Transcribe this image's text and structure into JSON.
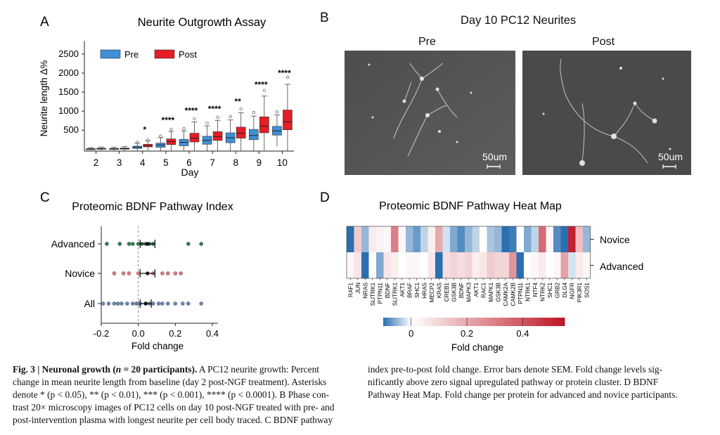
{
  "panels": {
    "A": {
      "letter": "A",
      "title": "Neurite Outgrowth  Assay",
      "legend": [
        {
          "label": "Pre",
          "color": "#3f8fd6"
        },
        {
          "label": "Post",
          "color": "#e51e25"
        }
      ],
      "ylabel": "Neurite length Δ%",
      "xlabel": "Day",
      "yticks": [
        "500",
        "1000",
        "1500",
        "2000",
        "2500"
      ],
      "days": [
        "2",
        "3",
        "4",
        "5",
        "6",
        "7",
        "8",
        "9",
        "10"
      ],
      "significance": [
        "",
        "",
        "*",
        "****",
        "****",
        "****",
        "**",
        "****",
        "****"
      ]
    },
    "B": {
      "letter": "B",
      "title": "Day 10 PC12 Neurites",
      "images": [
        {
          "label": "Pre",
          "scalebar": "50um"
        },
        {
          "label": "Post",
          "scalebar": "50um"
        }
      ]
    },
    "C": {
      "letter": "C",
      "title": "Proteomic BDNF Pathway Index",
      "groups": [
        "Advanced",
        "Novice",
        "All"
      ],
      "xlabel": "Fold change",
      "xticks": [
        "-0.2",
        "0.0",
        "0.2",
        "0.4"
      ]
    },
    "D": {
      "letter": "D",
      "title": "Proteomic BDNF Pathway Heat Map",
      "row_labels": [
        "Novice",
        "Advanced"
      ],
      "proteins": [
        "RAF1",
        "JUN",
        "NRAS",
        "SLITRK1",
        "PTPN11",
        "BDNF",
        "SLITRK1",
        "AKT1",
        "BRAF",
        "SHC1",
        "HRAS",
        "MECP2",
        "KRAS",
        "CREB1",
        "GSK3B",
        "BDNF",
        "MAPK3",
        "AKT1",
        "RAC1",
        "MAPK1",
        "GSK3B",
        "CAMK2A",
        "CAMK2B",
        "PTPN11",
        "NTRK1",
        "NTF4",
        "NTRK2",
        "SHC1",
        "GRB2",
        "DLG4",
        "NGFR",
        "PIK3R1",
        "SOS1"
      ],
      "colorbar_ticks": [
        "0",
        "0.2",
        "0.4"
      ],
      "colorbar_label": "Fold change"
    }
  },
  "chart_data": [
    {
      "type": "box",
      "title": "Neurite Outgrowth  Assay",
      "xlabel": "Day",
      "ylabel": "Neurite length Δ%",
      "categories": [
        "2",
        "3",
        "4",
        "5",
        "6",
        "7",
        "8",
        "9",
        "10"
      ],
      "ylim": [
        -50,
        2850
      ],
      "series": [
        {
          "name": "Pre",
          "color": "#3f8fd6",
          "median": [
            5,
            10,
            50,
            110,
            180,
            230,
            300,
            360,
            480
          ],
          "q1": [
            -5,
            -5,
            20,
            50,
            90,
            130,
            170,
            250,
            370
          ],
          "q3": [
            15,
            20,
            80,
            160,
            260,
            340,
            430,
            520,
            600
          ]
        },
        {
          "name": "Post",
          "color": "#e51e25",
          "median": [
            10,
            15,
            90,
            200,
            290,
            330,
            420,
            600,
            720
          ],
          "q1": [
            0,
            0,
            60,
            120,
            190,
            230,
            290,
            430,
            510
          ],
          "q3": [
            25,
            30,
            130,
            270,
            420,
            460,
            580,
            850,
            1030
          ]
        }
      ],
      "annotations": [
        "",
        "",
        "*",
        "****",
        "****",
        "****",
        "**",
        "****",
        "****"
      ]
    },
    {
      "type": "scatter",
      "title": "Proteomic BDNF Pathway Index",
      "xlabel": "Fold change",
      "xlim": [
        -0.2,
        0.4
      ],
      "groups": [
        {
          "name": "Advanced",
          "color": "#2e7d4f",
          "mean": 0.05,
          "sem": 0.04,
          "values": [
            -0.17,
            -0.1,
            -0.05,
            -0.03,
            0.0,
            0.02,
            0.04,
            0.06,
            0.08,
            0.27,
            0.34
          ]
        },
        {
          "name": "Novice",
          "color": "#d9777f",
          "mean": 0.05,
          "sem": 0.04,
          "values": [
            -0.13,
            -0.08,
            -0.05,
            0.0,
            0.08,
            0.13,
            0.16,
            0.2,
            0.23
          ]
        },
        {
          "name": "All",
          "color": "#6a86b0",
          "mean": 0.04,
          "sem": 0.03,
          "values": [
            -0.19,
            -0.16,
            -0.13,
            -0.11,
            -0.09,
            -0.06,
            -0.03,
            -0.01,
            0.0,
            0.01,
            0.04,
            0.06,
            0.08,
            0.11,
            0.13,
            0.16,
            0.2,
            0.24,
            0.27,
            0.34
          ]
        }
      ]
    },
    {
      "type": "heatmap",
      "title": "Proteomic BDNF Pathway Heat Map",
      "rows": [
        "Novice",
        "Advanced"
      ],
      "columns": [
        "RAF1",
        "JUN",
        "NRAS",
        "SLITRK1",
        "PTPN11",
        "BDNF",
        "SLITRK1",
        "AKT1",
        "BRAF",
        "SHC1",
        "HRAS",
        "MECP2",
        "KRAS",
        "CREB1",
        "GSK3B",
        "BDNF",
        "MAPK3",
        "AKT1",
        "RAC1",
        "MAPK1",
        "GSK3B",
        "CAMK2A",
        "CAMK2B",
        "PTPN11",
        "NTRK1",
        "NTF4",
        "NTRK2",
        "SHC1",
        "GRB2",
        "DLG4",
        "NGFR",
        "PIK3R1",
        "SOS1"
      ],
      "values": [
        [
          -0.12,
          0.12,
          -0.05,
          0.05,
          0.03,
          0.02,
          0.3,
          0.02,
          -0.05,
          -0.07,
          -0.03,
          0.04,
          0.2,
          -0.02,
          -0.06,
          -0.08,
          -0.05,
          -0.03,
          0.0,
          -0.04,
          -0.05,
          -0.12,
          -0.09,
          0.0,
          -0.06,
          -0.03,
          0.35,
          0.02,
          -0.08,
          -0.12,
          0.52,
          0.15,
          -0.05
        ],
        [
          0.02,
          0.06,
          -0.15,
          0.0,
          -0.06,
          0.06,
          0.04,
          0.0,
          0.02,
          0.02,
          0.0,
          0.06,
          -0.17,
          0.08,
          0.1,
          0.08,
          0.1,
          0.04,
          0.06,
          0.12,
          0.1,
          0.1,
          0.25,
          -0.12,
          0.0,
          0.02,
          0.05,
          0.0,
          0.02,
          0.22,
          -0.02,
          0.05,
          0.02
        ]
      ],
      "colorbar": {
        "min": -0.1,
        "max": 0.55,
        "ticks": [
          0,
          0.2,
          0.4
        ]
      }
    }
  ],
  "caption": {
    "col1": [
      {
        "bold": "Fig. 3 | Neuronal growth (",
        "boldi": "n",
        "bold2": " = 20 participants)."
      },
      "A PC12 neurite growth: Percent",
      "change in mean neurite length from baseline (day 2 post-NGF treatment). Asterisks",
      "denote * (p < 0.05), ** (p < 0.01), *** (p < 0.001), **** (p < 0.0001). B Phase con-",
      "trast 20× microscopy images of PC12 cells on day 10 post-NGF treated with pre- and",
      "post-intervention plasma with longest neurite per cell body traced. C BDNF pathway"
    ],
    "col2": [
      "index pre-to-post fold change. Error bars denote SEM. Fold change levels sig-",
      "nificantly above zero signal upregulated pathway or protein cluster. D BDNF",
      "Pathway Heat Map. Fold change per protein for advanced and novice participants."
    ]
  }
}
